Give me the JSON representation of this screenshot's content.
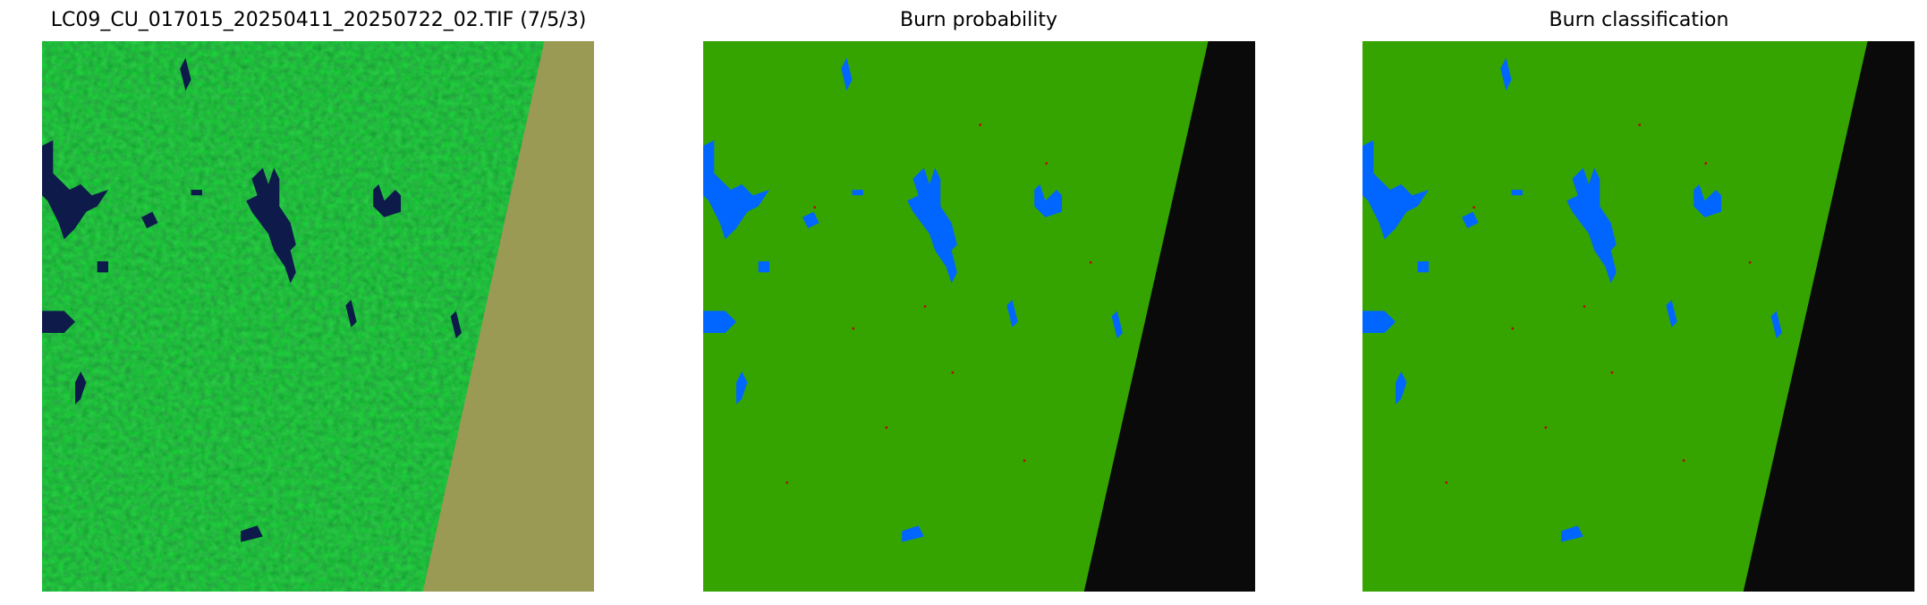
{
  "panels": [
    {
      "title": "LC09_CU_017015_20250411_20250722_02.TIF (7/5/3)"
    },
    {
      "title": "Burn probability"
    },
    {
      "title": "Burn classification"
    }
  ],
  "colors": {
    "composite_vegetation": "#3fd35f",
    "composite_water": "#0e1a4a",
    "composite_nodata": "#9a9a55",
    "class_unburned": "#36a400",
    "class_water": "#0066ff",
    "class_nodata": "#0a0a0a",
    "class_burned": "#c00000"
  }
}
